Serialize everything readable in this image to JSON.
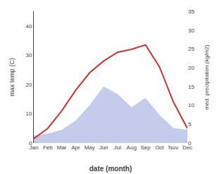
{
  "chart_data": {
    "type": "line",
    "categories": [
      "Jan",
      "Feb",
      "Mar",
      "Apr",
      "May",
      "Jun",
      "Jul",
      "Aug",
      "Sep",
      "Oct",
      "Nov",
      "Dec"
    ],
    "series": [
      {
        "type": "area",
        "axis": "y2",
        "color": "#c5cbea",
        "values": [
          2.0,
          2.5,
          3.5,
          6.0,
          10.0,
          15.0,
          13.0,
          9.5,
          12.0,
          7.5,
          4.0,
          3.5
        ]
      },
      {
        "type": "line",
        "color": "#cc3333",
        "values": [
          1.5,
          5.0,
          11.0,
          18.0,
          24.0,
          28.0,
          31.0,
          32.0,
          33.5,
          26.0,
          14.0,
          5.0
        ]
      }
    ],
    "xlabel": "date (month)",
    "ylabel": "max temp (C)",
    "y2label": "med. precipitation (kg/m2)",
    "ylim": [
      0,
      45
    ],
    "yticks": [
      0,
      10,
      20,
      30,
      40
    ],
    "y2lim": [
      0,
      35
    ],
    "y2ticks": [
      0,
      5,
      10,
      15,
      20,
      25,
      30,
      35
    ],
    "grid": false
  }
}
